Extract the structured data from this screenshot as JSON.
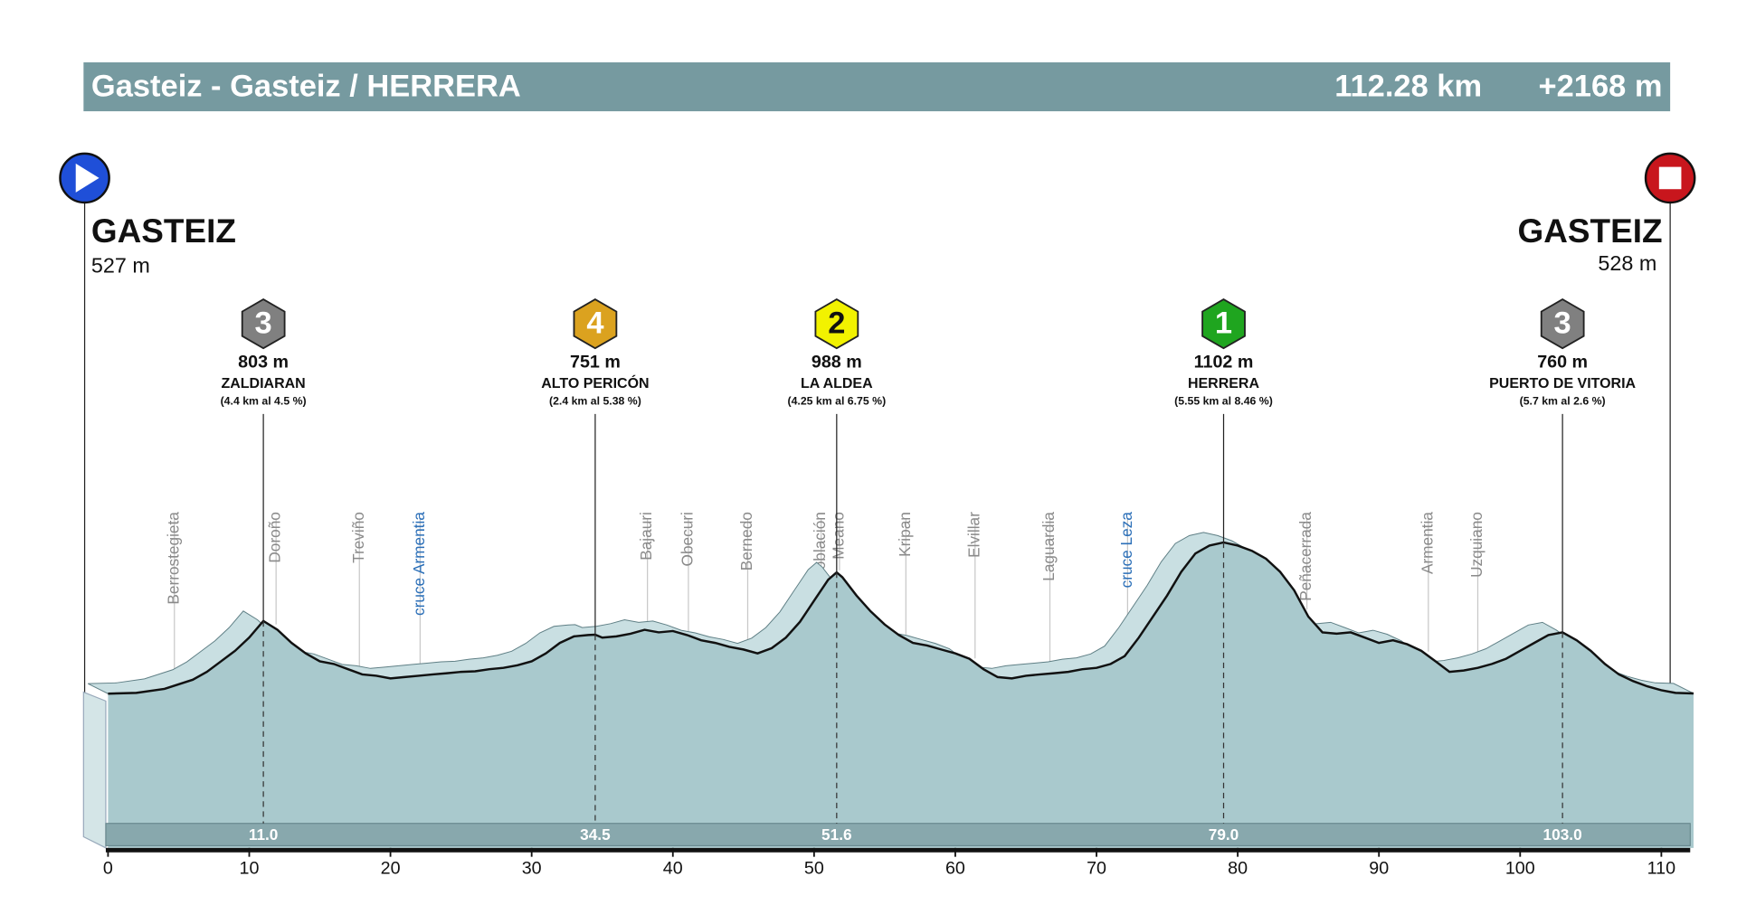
{
  "chart_data": {
    "type": "area",
    "title": "Gasteiz - Gasteiz / HERRERA",
    "distance": "112.28 km",
    "elevation_gain": "+2168 m",
    "start": {
      "name": "GASTEIZ",
      "elevation": "527 m"
    },
    "finish": {
      "name": "GASTEIZ",
      "elevation": "528 m"
    },
    "color": "#a9c9cd",
    "x": [
      0,
      2,
      4,
      6,
      7,
      8,
      9,
      10,
      11,
      12,
      13,
      14,
      15,
      16,
      17,
      18,
      19,
      20,
      21,
      22,
      23,
      24,
      25,
      26,
      27,
      28,
      29,
      30,
      31,
      32,
      33,
      34,
      34.5,
      35,
      36,
      37,
      38,
      39,
      40,
      41,
      42,
      43,
      44,
      45,
      46,
      47,
      48,
      49,
      50,
      51,
      51.6,
      52,
      53,
      54,
      55,
      56,
      57,
      58,
      59,
      60,
      61,
      62,
      63,
      64,
      65,
      66,
      67,
      68,
      69,
      70,
      71,
      72,
      73,
      74,
      75,
      76,
      77,
      78,
      79,
      80,
      81,
      82,
      83,
      84,
      85,
      86,
      87,
      88,
      89,
      90,
      91,
      92,
      93,
      94,
      95,
      96,
      97,
      98,
      99,
      100,
      101,
      102,
      103,
      104,
      105,
      106,
      107,
      108,
      109,
      110,
      111,
      112.28
    ],
    "values": [
      527,
      530,
      545,
      580,
      610,
      650,
      690,
      740,
      803,
      770,
      720,
      680,
      650,
      640,
      620,
      600,
      595,
      585,
      590,
      595,
      600,
      605,
      610,
      612,
      620,
      625,
      635,
      650,
      680,
      720,
      745,
      750,
      751,
      740,
      745,
      755,
      770,
      760,
      765,
      750,
      730,
      720,
      705,
      695,
      680,
      700,
      740,
      800,
      880,
      960,
      988,
      970,
      900,
      840,
      790,
      750,
      720,
      710,
      695,
      680,
      660,
      620,
      590,
      585,
      595,
      600,
      605,
      610,
      620,
      625,
      640,
      670,
      740,
      820,
      900,
      990,
      1060,
      1090,
      1102,
      1090,
      1070,
      1040,
      990,
      920,
      820,
      760,
      755,
      760,
      740,
      720,
      730,
      715,
      690,
      650,
      610,
      615,
      625,
      640,
      660,
      690,
      720,
      750,
      760,
      730,
      690,
      640,
      600,
      575,
      555,
      540,
      530,
      528
    ],
    "xlim": [
      0,
      112.28
    ],
    "xticks": [
      0,
      10,
      20,
      30,
      40,
      50,
      60,
      70,
      80,
      90,
      100,
      110
    ],
    "ylim": [
      0,
      1400
    ],
    "climbs": [
      {
        "category": 3,
        "color": "#808080",
        "elevation": "803 m",
        "name": "ZALDIARAN",
        "detail": "(4.4 km al 4.5 %)",
        "km": {
          "value": 11,
          "label": "11.0"
        }
      },
      {
        "category": 4,
        "color": "#dba21f",
        "elevation": "751 m",
        "name": "ALTO PERICÓN",
        "detail": "(2.4 km al 5.38 %)",
        "km": {
          "value": 34.5,
          "label": "34.5"
        }
      },
      {
        "category": 2,
        "color": "#f2f200",
        "elevation": "988 m",
        "name": "LA ALDEA",
        "detail": "(4.25 km al 6.75 %)",
        "km": {
          "value": 51.6,
          "label": "51.6"
        }
      },
      {
        "category": 1,
        "color": "#1fa51f",
        "elevation": "1102 m",
        "name": "HERRERA",
        "detail": "(5.55 km al 8.46 %)",
        "km": {
          "value": 79,
          "label": "79.0"
        }
      },
      {
        "category": 3,
        "color": "#808080",
        "elevation": "760 m",
        "name": "PUERTO DE VITORIA",
        "detail": "(5.7 km al 2.6 %)",
        "km": {
          "value": 103,
          "label": "103.0"
        }
      }
    ],
    "towns": [
      {
        "name": "Berrostegieta",
        "km": 4.7,
        "color": "#8a8a8a"
      },
      {
        "name": "Doroño",
        "km": 11.9,
        "color": "#8a8a8a"
      },
      {
        "name": "Treviño",
        "km": 17.8,
        "color": "#8a8a8a"
      },
      {
        "name": "cruce Armentia",
        "km": 22.1,
        "color": "#2b6fb8"
      },
      {
        "name": "Bajauri",
        "km": 38.2,
        "color": "#8a8a8a"
      },
      {
        "name": "Obecuri",
        "km": 41.1,
        "color": "#8a8a8a"
      },
      {
        "name": "Bernedo",
        "km": 45.3,
        "color": "#8a8a8a"
      },
      {
        "name": "Lapoblación",
        "km": 50.5,
        "color": "#8a8a8a"
      },
      {
        "name": "Meano",
        "km": 51.8,
        "color": "#8a8a8a"
      },
      {
        "name": "Kripan",
        "km": 56.5,
        "color": "#8a8a8a"
      },
      {
        "name": "Elvillar",
        "km": 61.4,
        "color": "#8a8a8a"
      },
      {
        "name": "Laguardia",
        "km": 66.7,
        "color": "#8a8a8a"
      },
      {
        "name": "cruce Leza",
        "km": 72.2,
        "color": "#2b6fb8"
      },
      {
        "name": "Peñacerrada",
        "km": 84.9,
        "color": "#8a8a8a"
      },
      {
        "name": "Armentia",
        "km": 93.5,
        "color": "#8a8a8a"
      },
      {
        "name": "Uzquiano",
        "km": 97.0,
        "color": "#8a8a8a"
      }
    ]
  }
}
